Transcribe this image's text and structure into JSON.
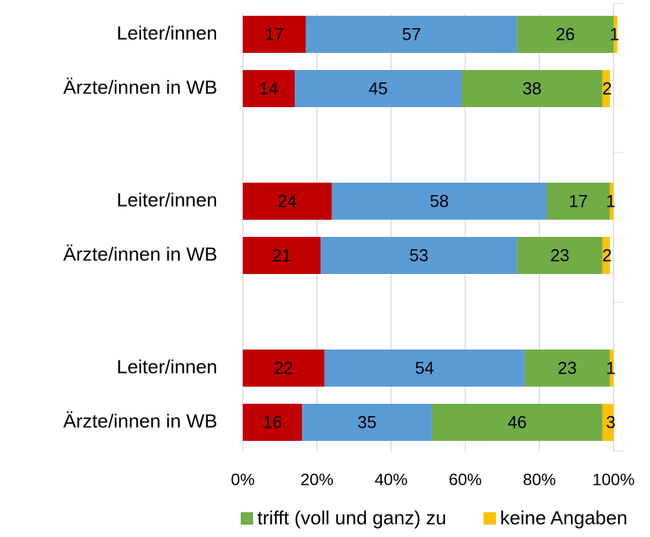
{
  "chart_data": {
    "type": "bar_stacked_horizontal",
    "categories": [
      "Leiter/innen",
      "Ärzte/innen in WB",
      "Leiter/innen",
      "Ärzte/innen in WB",
      "Leiter/innen",
      "Ärzte/innen in WB"
    ],
    "series": [
      {
        "color": "#c00000",
        "values": [
          17,
          14,
          24,
          21,
          22,
          16
        ]
      },
      {
        "color": "#5b9bd5",
        "values": [
          57,
          45,
          58,
          53,
          54,
          35
        ]
      },
      {
        "name": "trifft (voll und ganz) zu",
        "color": "#70ad47",
        "values": [
          26,
          38,
          17,
          23,
          23,
          46
        ]
      },
      {
        "name": "keine Angaben",
        "color": "#ffc000",
        "values": [
          1,
          2,
          1,
          2,
          1,
          3
        ]
      }
    ],
    "xlim": [
      0,
      100
    ],
    "xticks": [
      {
        "value": 0,
        "label": "0%"
      },
      {
        "value": 20,
        "label": "20%"
      },
      {
        "value": 40,
        "label": "40%"
      },
      {
        "value": 60,
        "label": "60%"
      },
      {
        "value": 80,
        "label": "80%"
      },
      {
        "value": 100,
        "label": "100%"
      }
    ],
    "grid": true
  }
}
